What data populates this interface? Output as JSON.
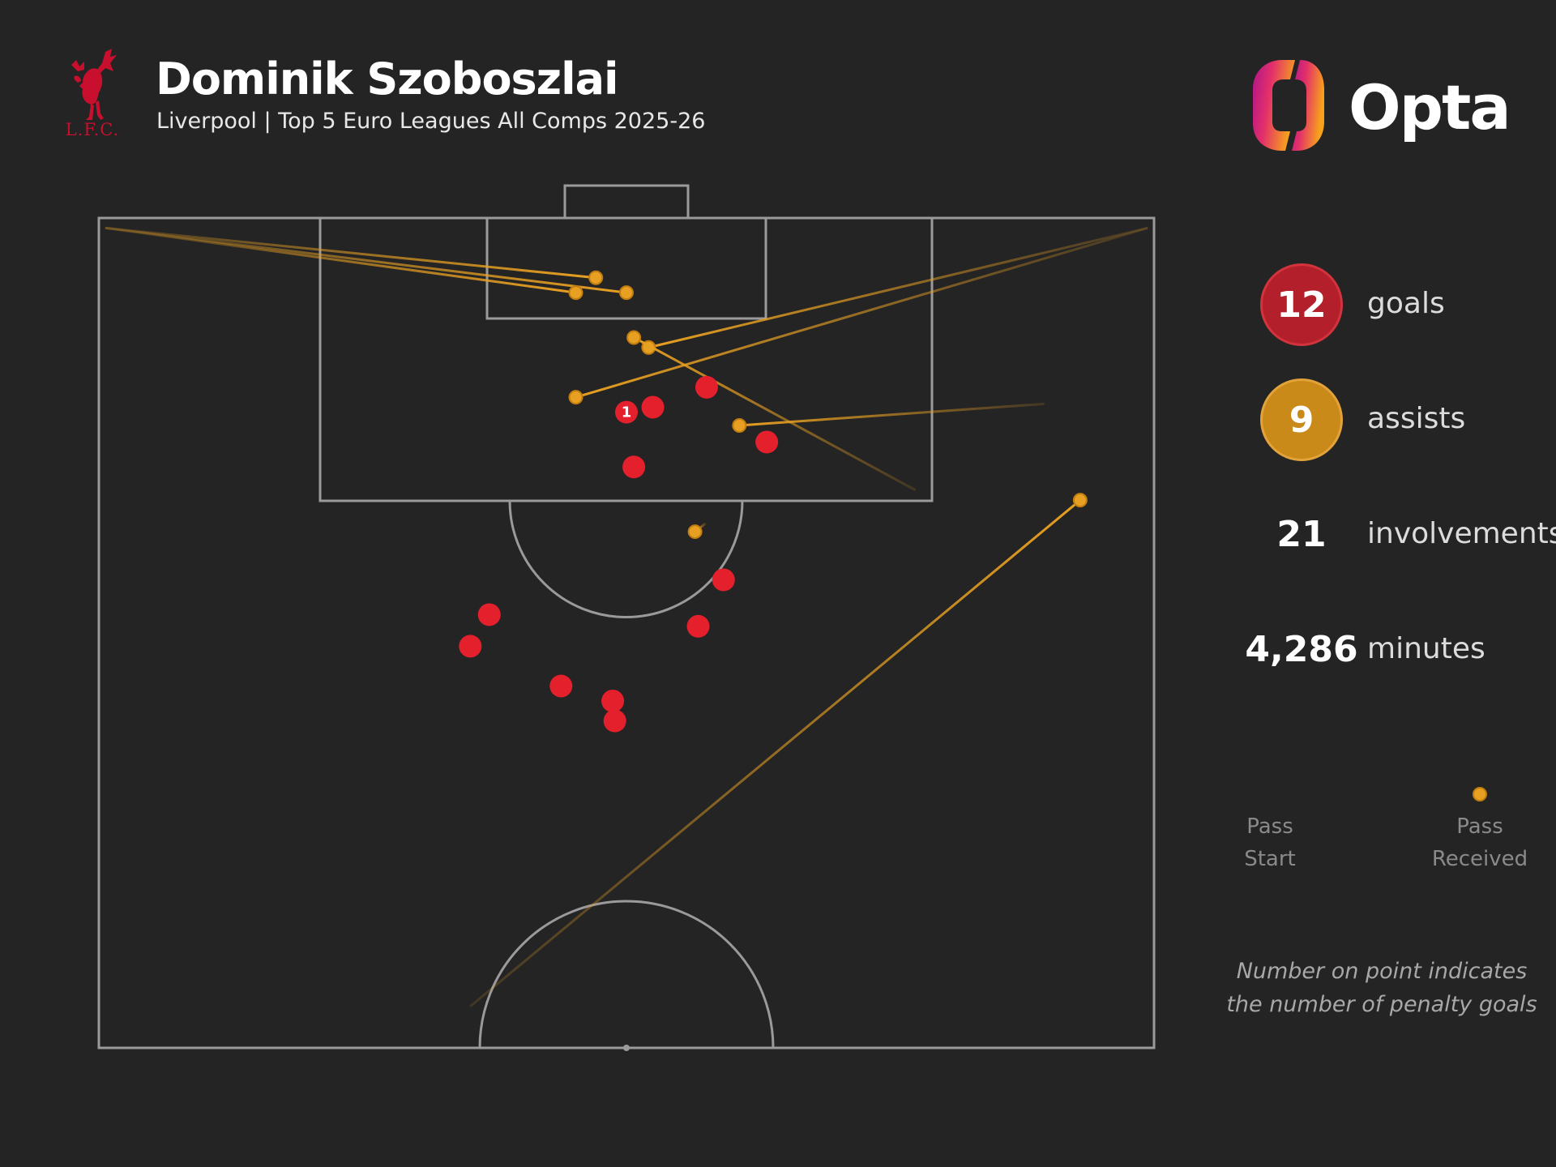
{
  "header": {
    "title": "Dominik Szoboszlai",
    "subtitle": "Liverpool | Top 5 Euro Leagues All Comps 2025-26",
    "club_crest_text": "L.F.C.",
    "club_crest_icon": "liver-bird-crest-icon",
    "brand_logo_text": "Opta",
    "brand_logo_icon": "opta-logo-icon"
  },
  "stats": {
    "goals": {
      "value": "12",
      "label": "goals",
      "color": "#b3202b"
    },
    "assists": {
      "value": "9",
      "label": "assists",
      "color": "#c98a1a"
    },
    "involvements": {
      "value": "21",
      "label": "involvements"
    },
    "minutes": {
      "value": "4,286",
      "label": "minutes"
    }
  },
  "legend": {
    "start_label": "Pass\nStart",
    "end_label": "Pass\nReceived"
  },
  "footnote": "Number on point indicates\nthe number of penalty goals",
  "colors": {
    "background": "#242424",
    "pitch_lines": "#9a9a9a",
    "goal": "#e4202d",
    "pass": "#e8a022"
  },
  "chart_data": {
    "type": "scatter",
    "pitch": "half-pitch, attacking upwards (x 0-100 across width, y 0-50 from goal line)",
    "goals": [
      {
        "x": 50.0,
        "y": 11.7,
        "penalty": 1
      },
      {
        "x": 52.5,
        "y": 11.4
      },
      {
        "x": 57.6,
        "y": 10.2
      },
      {
        "x": 63.3,
        "y": 13.5
      },
      {
        "x": 50.7,
        "y": 15.0
      },
      {
        "x": 59.2,
        "y": 21.8
      },
      {
        "x": 56.8,
        "y": 24.6
      },
      {
        "x": 37.0,
        "y": 23.9
      },
      {
        "x": 35.2,
        "y": 25.8
      },
      {
        "x": 43.8,
        "y": 28.2
      },
      {
        "x": 48.7,
        "y": 29.1
      },
      {
        "x": 48.9,
        "y": 30.3
      }
    ],
    "assists": [
      {
        "start": [
          0.6,
          0.6
        ],
        "end": [
          47.1,
          3.6
        ]
      },
      {
        "start": [
          0.6,
          0.6
        ],
        "end": [
          50.0,
          4.5
        ]
      },
      {
        "start": [
          0.6,
          0.6
        ],
        "end": [
          45.2,
          4.5
        ]
      },
      {
        "start": [
          99.4,
          0.6
        ],
        "end": [
          52.1,
          7.8
        ]
      },
      {
        "start": [
          99.4,
          0.6
        ],
        "end": [
          45.2,
          10.8
        ]
      },
      {
        "start": [
          77.4,
          16.4
        ],
        "end": [
          50.7,
          7.2
        ]
      },
      {
        "start": [
          89.6,
          11.2
        ],
        "end": [
          60.7,
          12.5
        ]
      },
      {
        "start": [
          57.5,
          18.4
        ],
        "end": [
          56.5,
          18.9
        ]
      },
      {
        "start": [
          35.2,
          47.5
        ],
        "end": [
          93.0,
          17.0
        ]
      }
    ]
  }
}
